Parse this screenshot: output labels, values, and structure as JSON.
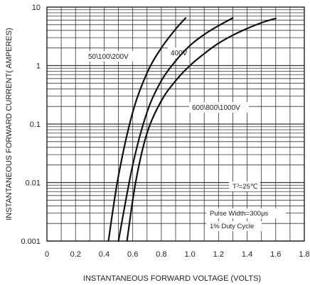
{
  "chart_data": {
    "type": "line",
    "title": "",
    "xlabel": "INSTANTANEOUS FORWARD VOLTAGE (VOLTS)",
    "ylabel": "INSTANTANEOUS FORWARD CURRENT( AMPERES)",
    "xlim": [
      0,
      1.8
    ],
    "ylim": [
      0.001,
      10
    ],
    "yscale": "log",
    "grid": true,
    "x_ticks": [
      "0",
      "0.2",
      "0.4",
      "0.6",
      "0.8",
      "1.0",
      "1.2",
      "1.4",
      "1.6",
      "1.8"
    ],
    "y_ticks": [
      "0.001",
      "0.01",
      "0.1",
      "1",
      "10"
    ],
    "series": [
      {
        "name": "50\\100\\200V",
        "x": [
          0.43,
          0.5,
          0.6,
          0.7,
          0.8,
          0.9,
          0.97
        ],
        "y": [
          0.001,
          0.013,
          0.16,
          0.75,
          2.0,
          4.2,
          6.5
        ]
      },
      {
        "name": "400V",
        "x": [
          0.5,
          0.6,
          0.7,
          0.8,
          0.9,
          1.0,
          1.1,
          1.2,
          1.3
        ],
        "y": [
          0.001,
          0.02,
          0.16,
          0.55,
          1.2,
          2.2,
          3.4,
          4.8,
          6.5
        ]
      },
      {
        "name": "600\\800\\1000V",
        "x": [
          0.56,
          0.62,
          0.7,
          0.8,
          0.9,
          1.0,
          1.1,
          1.2,
          1.3,
          1.4,
          1.5,
          1.6
        ],
        "y": [
          0.001,
          0.01,
          0.07,
          0.25,
          0.55,
          1.0,
          1.6,
          2.4,
          3.3,
          4.3,
          5.4,
          6.4
        ]
      }
    ],
    "annotations": [
      "Tᴶ=25℃",
      "Pulse Width=300μs",
      "1% Duty Cycle"
    ]
  }
}
